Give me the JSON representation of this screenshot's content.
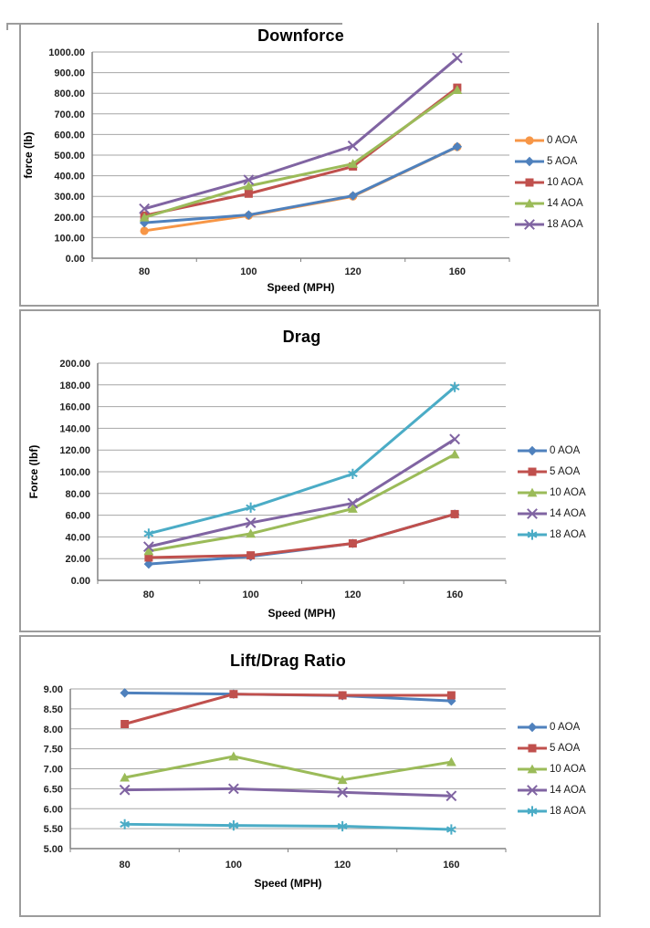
{
  "page": {
    "background": "#ffffff",
    "frame_color": "#9c9c9c"
  },
  "chart_data": [
    {
      "type": "line",
      "title": "Downforce",
      "xlabel": "Speed (MPH)",
      "ylabel": "force (lb)",
      "categories": [
        "80",
        "100",
        "120",
        "160"
      ],
      "ylim": [
        0,
        1000
      ],
      "ystep": 100,
      "yticks": [
        "0.00",
        "100.00",
        "200.00",
        "300.00",
        "400.00",
        "500.00",
        "600.00",
        "700.00",
        "800.00",
        "900.00",
        "1000.00"
      ],
      "grid": true,
      "legend_position": "right",
      "series": [
        {
          "name": "0 AOA",
          "marker": "circle",
          "color": "#F79646",
          "values": [
            133,
            207,
            300,
            540
          ]
        },
        {
          "name": "5 AOA",
          "marker": "diamond",
          "color": "#4F81BD",
          "values": [
            172,
            210,
            303,
            541
          ]
        },
        {
          "name": "10 AOA",
          "marker": "square",
          "color": "#C0504D",
          "values": [
            207,
            313,
            445,
            827
          ]
        },
        {
          "name": "14 AOA",
          "marker": "triangle",
          "color": "#9BBB59",
          "values": [
            198,
            350,
            458,
            816
          ]
        },
        {
          "name": "18 AOA",
          "marker": "x",
          "color": "#8064A2",
          "values": [
            240,
            380,
            545,
            971
          ]
        }
      ]
    },
    {
      "type": "line",
      "title": "Drag",
      "xlabel": "Speed (MPH)",
      "ylabel": "Force (lbf)",
      "categories": [
        "80",
        "100",
        "120",
        "160"
      ],
      "ylim": [
        0,
        200
      ],
      "ystep": 20,
      "yticks": [
        "0.00",
        "20.00",
        "40.00",
        "60.00",
        "80.00",
        "100.00",
        "120.00",
        "140.00",
        "160.00",
        "180.00",
        "200.00"
      ],
      "grid": true,
      "legend_position": "right",
      "series": [
        {
          "name": "0 AOA",
          "marker": "diamond",
          "color": "#4F81BD",
          "values": [
            15,
            22,
            34,
            61
          ]
        },
        {
          "name": "5 AOA",
          "marker": "square",
          "color": "#C0504D",
          "values": [
            21,
            23,
            34,
            61
          ]
        },
        {
          "name": "10 AOA",
          "marker": "triangle",
          "color": "#9BBB59",
          "values": [
            27,
            43,
            66,
            116
          ]
        },
        {
          "name": "14 AOA",
          "marker": "x",
          "color": "#8064A2",
          "values": [
            31,
            53,
            71,
            130
          ]
        },
        {
          "name": "18 AOA",
          "marker": "asterisk",
          "color": "#4BACC6",
          "values": [
            43,
            67,
            98,
            178
          ]
        }
      ]
    },
    {
      "type": "line",
      "title": "Lift/Drag Ratio",
      "xlabel": "Speed (MPH)",
      "ylabel": "",
      "categories": [
        "80",
        "100",
        "120",
        "160"
      ],
      "ylim": [
        5,
        9
      ],
      "ystep": 0.5,
      "yticks": [
        "5.00",
        "5.50",
        "6.00",
        "6.50",
        "7.00",
        "7.50",
        "8.00",
        "8.50",
        "9.00"
      ],
      "grid": true,
      "legend_position": "right",
      "series": [
        {
          "name": "0 AOA",
          "marker": "diamond",
          "color": "#4F81BD",
          "values": [
            8.9,
            8.87,
            8.83,
            8.7
          ]
        },
        {
          "name": "5 AOA",
          "marker": "square",
          "color": "#C0504D",
          "values": [
            8.12,
            8.87,
            8.84,
            8.84
          ]
        },
        {
          "name": "10 AOA",
          "marker": "triangle",
          "color": "#9BBB59",
          "values": [
            6.78,
            7.31,
            6.72,
            7.17
          ]
        },
        {
          "name": "14 AOA",
          "marker": "x",
          "color": "#8064A2",
          "values": [
            6.47,
            6.5,
            6.41,
            6.32
          ]
        },
        {
          "name": "18 AOA",
          "marker": "asterisk",
          "color": "#4BACC6",
          "values": [
            5.61,
            5.58,
            5.56,
            5.48
          ]
        }
      ]
    }
  ]
}
